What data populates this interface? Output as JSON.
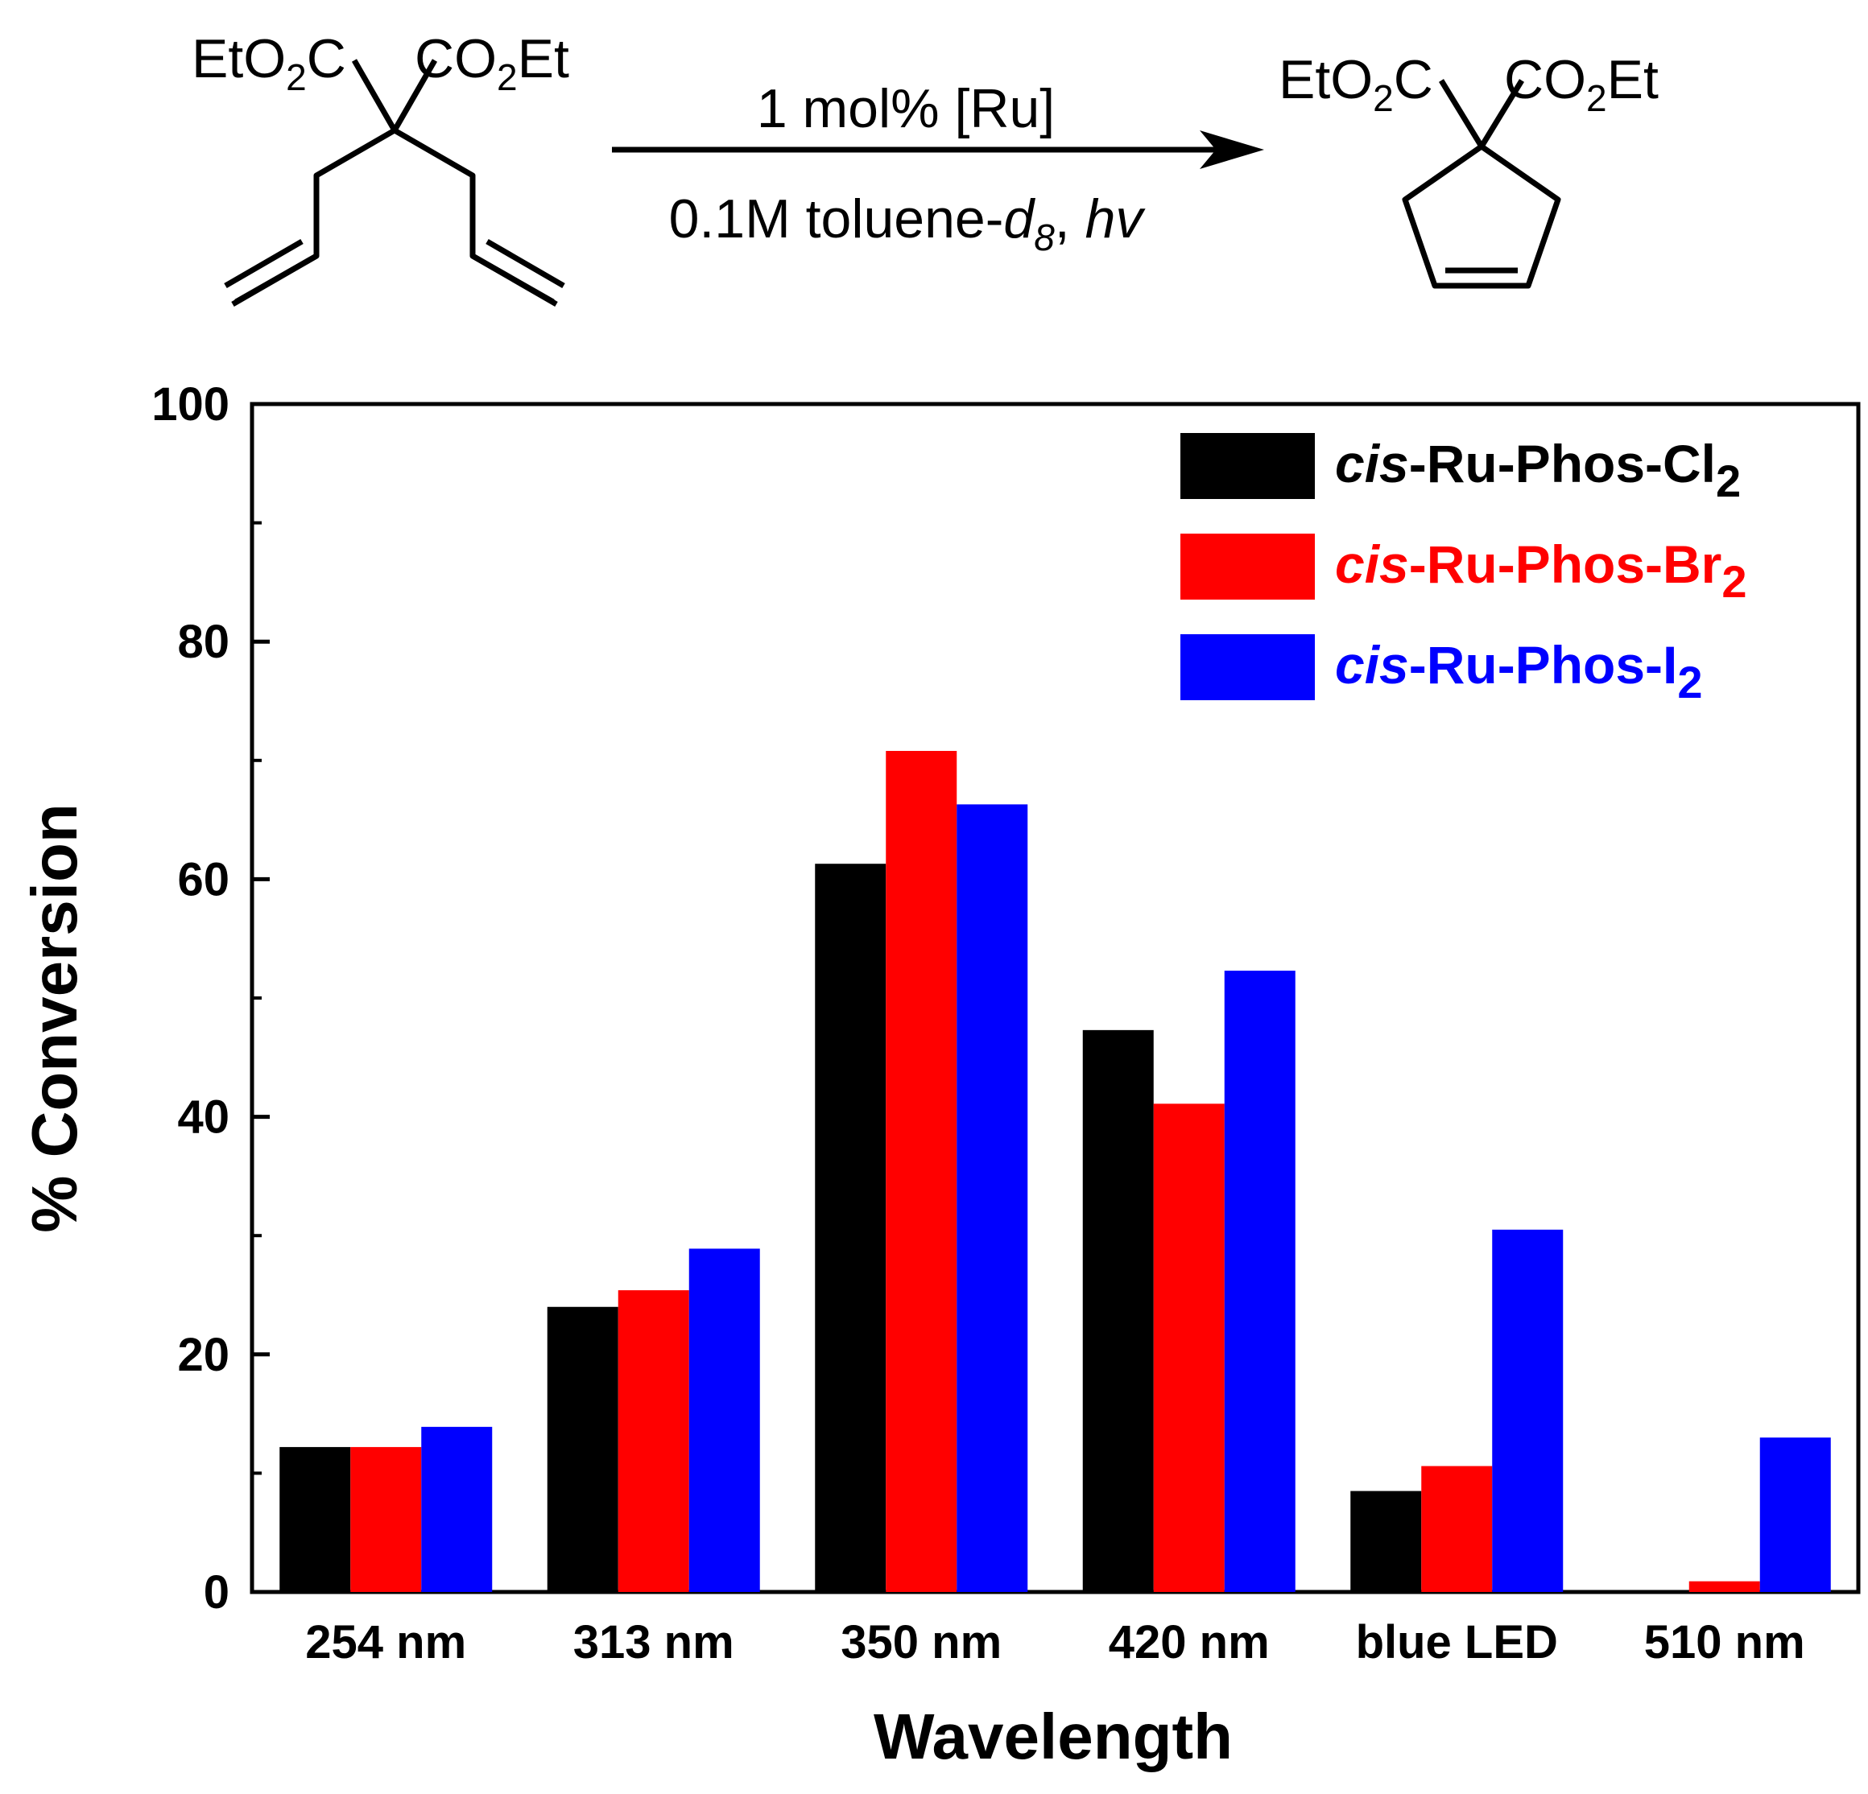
{
  "scheme": {
    "reactant_labels": {
      "left": {
        "main": "EtO",
        "sub": "2",
        "tail": "C"
      },
      "right": {
        "main": "CO",
        "sub": "2",
        "tail": "Et"
      }
    },
    "product_labels": {
      "left": {
        "main": "EtO",
        "sub": "2",
        "tail": "C"
      },
      "right": {
        "main": "CO",
        "sub": "2",
        "tail": "Et"
      }
    },
    "conditions_top": "1 mol% [Ru]",
    "conditions_bottom": {
      "pre": "0.1M toluene-",
      "d": "d",
      "sub": "8",
      "mid": ", ",
      "hv": "hv"
    }
  },
  "chart_data": {
    "type": "bar",
    "title": "",
    "xlabel": "Wavelength",
    "ylabel": "% Conversion",
    "ylim": [
      0,
      100
    ],
    "yticks": [
      0,
      20,
      40,
      60,
      80,
      100
    ],
    "ytick_labels": [
      "0",
      "20",
      "40",
      "60",
      "80",
      "100"
    ],
    "grid": false,
    "legend_position": "top-right",
    "categories": [
      "254 nm",
      "313 nm",
      "350 nm",
      "420 nm",
      "blue LED",
      "510 nm"
    ],
    "series": [
      {
        "name": "cis-Ru-Phos-Cl2",
        "legend": {
          "italic": "cis",
          "rest": "-Ru-Phos-Cl",
          "sub": "2"
        },
        "color": "#000000",
        "values": [
          12.2,
          24.0,
          61.3,
          47.3,
          8.5,
          0
        ]
      },
      {
        "name": "cis-Ru-Phos-Br2",
        "legend": {
          "italic": "cis",
          "rest": "-Ru-Phos-Br",
          "sub": "2"
        },
        "color": "#ff0000",
        "values": [
          12.2,
          25.4,
          70.8,
          41.1,
          10.6,
          0.9
        ]
      },
      {
        "name": "cis-Ru-Phos-I2",
        "legend": {
          "italic": "cis",
          "rest": "-Ru-Phos-I",
          "sub": "2"
        },
        "color": "#0000ff",
        "values": [
          13.9,
          28.9,
          66.3,
          52.3,
          30.5,
          13.0
        ]
      }
    ]
  }
}
